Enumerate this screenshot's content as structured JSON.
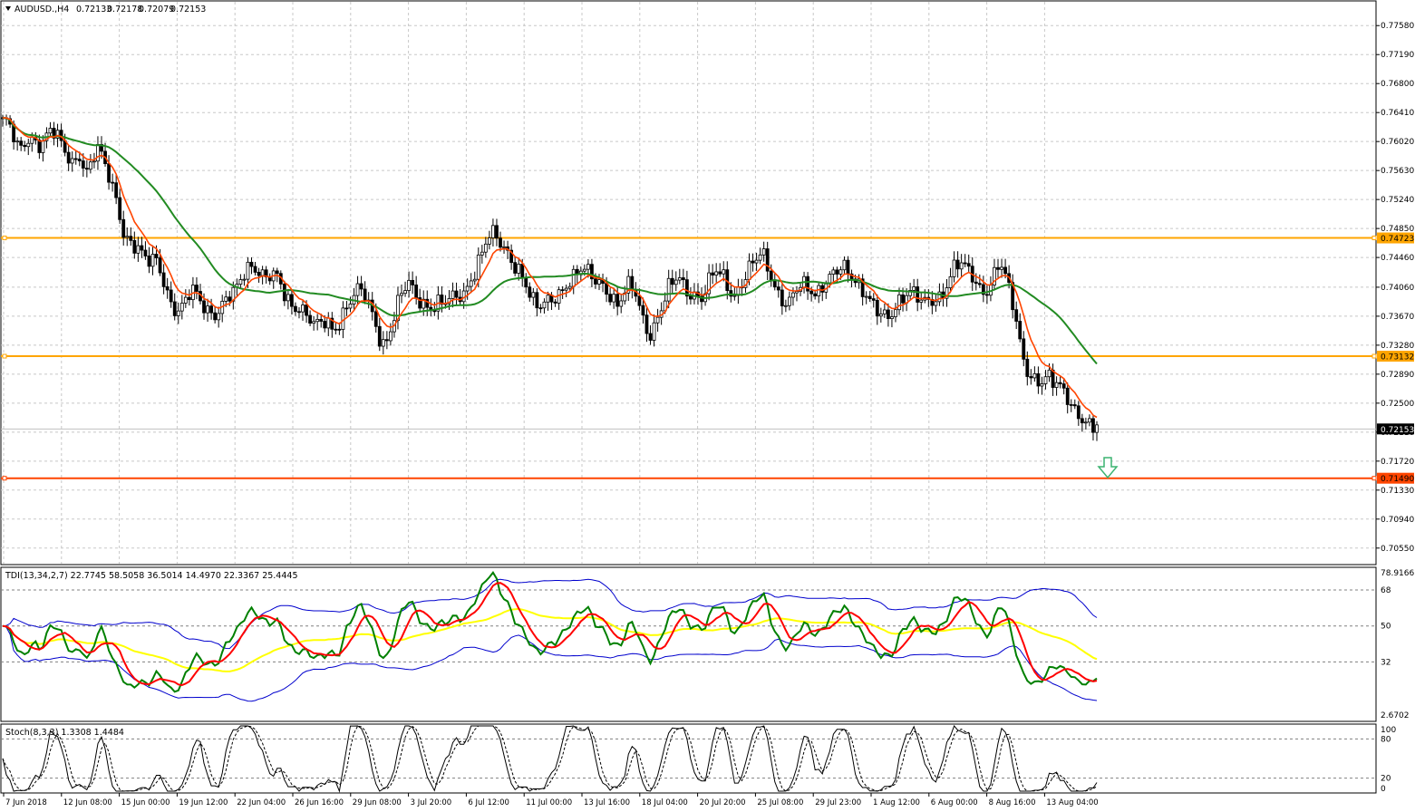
{
  "main": {
    "header": {
      "symbol": "AUDUSD.,H4",
      "open": "0.72133",
      "high": "0.72178",
      "low": "0.72079",
      "close": "0.72153"
    },
    "price_scale": [
      "0.77580",
      "0.77190",
      "0.76800",
      "0.76410",
      "0.76020",
      "0.75630",
      "0.75240",
      "0.74850",
      "0.74460",
      "0.74060",
      "0.73670",
      "0.73280",
      "0.72890",
      "0.72500",
      "0.72110",
      "0.71720",
      "0.71330",
      "0.70940",
      "0.70550"
    ],
    "price_scale_values": [
      0.7758,
      0.7719,
      0.768,
      0.7641,
      0.7602,
      0.7563,
      0.7524,
      0.7485,
      0.7446,
      0.7406,
      0.7367,
      0.7328,
      0.7289,
      0.725,
      0.7211,
      0.7172,
      0.7133,
      0.7094,
      0.7055
    ],
    "levels": [
      {
        "label": "0.74723",
        "value": 0.74723,
        "color": "#ffa500"
      },
      {
        "label": "0.73132",
        "value": 0.73132,
        "color": "#ffa500"
      },
      {
        "label": "0.71490",
        "value": 0.7149,
        "color": "#ff4500"
      }
    ],
    "current_price": {
      "label": "0.72153",
      "value": 0.72153
    },
    "arrow": {
      "direction": "down",
      "color": "#3cb371"
    },
    "ma_fast_color": "#ff4500",
    "ma_slow_color": "#228b22"
  },
  "tdi": {
    "header": "TDI(13,34,2,7) 22.7745 58.5058 36.5014 14.4970 22.3367 25.4445",
    "scale": [
      "78.9166",
      "68",
      "50",
      "32",
      "2.6702"
    ],
    "levels": [
      68,
      50,
      32
    ],
    "colors": {
      "band": "#0000cd",
      "signal": "#ff0000",
      "rsi": "#008000",
      "base": "#ffff00"
    }
  },
  "stoch": {
    "header": "Stoch(8,3,3) 1.3308 1.4484",
    "scale": [
      "100",
      "80",
      "20",
      "0"
    ],
    "levels": [
      80,
      20
    ]
  },
  "time_axis": [
    "7 Jun 2018",
    "12 Jun 08:00",
    "15 Jun 00:00",
    "19 Jun 12:00",
    "22 Jun 04:00",
    "26 Jun 16:00",
    "29 Jun 08:00",
    "3 Jul 20:00",
    "6 Jul 12:00",
    "11 Jul 00:00",
    "13 Jul 16:00",
    "18 Jul 04:00",
    "20 Jul 20:00",
    "25 Jul 08:00",
    "29 Jul 23:00",
    "1 Aug 12:00",
    "6 Aug 00:00",
    "8 Aug 16:00",
    "13 Aug 04:00"
  ],
  "chart_data": {
    "type": "candlestick",
    "symbol": "AUDUSD.,H4",
    "ylim": [
      0.7055,
      0.7758
    ],
    "price_path": [
      [
        0.763,
        0.7625,
        0.7605,
        0.7585,
        0.76,
        0.761,
        0.7605,
        0.76,
        0.761,
        0.7615,
        0.7605,
        0.759,
        0.758,
        0.7575,
        0.759,
        0.756,
        0.757,
        0.759,
        0.758,
        0.756
      ],
      [
        0.754,
        0.752,
        0.748,
        0.747,
        0.746,
        0.745,
        0.744,
        0.744,
        0.7445,
        0.7425,
        0.74,
        0.738,
        0.737,
        0.738,
        0.7395,
        0.74,
        0.739,
        0.738,
        0.7375,
        0.737
      ],
      [
        0.738,
        0.739,
        0.7395,
        0.741,
        0.743,
        0.744,
        0.7435,
        0.7425,
        0.7415,
        0.742,
        0.7415,
        0.74,
        0.739,
        0.738,
        0.7385,
        0.737,
        0.736,
        0.735,
        0.7355,
        0.736
      ],
      [
        0.735,
        0.736,
        0.7375,
        0.7385,
        0.7395,
        0.74,
        0.739,
        0.7375,
        0.7355,
        0.733,
        0.734,
        0.736,
        0.7385,
        0.74,
        0.741,
        0.7395,
        0.739,
        0.7385,
        0.738,
        0.7385
      ],
      [
        0.738,
        0.7385,
        0.739,
        0.7395,
        0.74,
        0.742,
        0.743,
        0.745,
        0.7465,
        0.7475,
        0.747,
        0.746,
        0.7455,
        0.744,
        0.743,
        0.741,
        0.739,
        0.7375,
        0.738,
        0.739
      ],
      [
        0.7395,
        0.74,
        0.7405,
        0.741,
        0.7415,
        0.7425,
        0.743,
        0.7425,
        0.742,
        0.7415,
        0.74,
        0.7385,
        0.7375,
        0.7395,
        0.741,
        0.7405,
        0.738,
        0.7355,
        0.734,
        0.736
      ],
      [
        0.7375,
        0.74,
        0.7415,
        0.7425,
        0.741,
        0.74,
        0.7395,
        0.7385,
        0.74,
        0.742,
        0.743,
        0.7425,
        0.741,
        0.7395,
        0.7405,
        0.7415,
        0.743,
        0.744,
        0.7455,
        0.744
      ],
      [
        0.742,
        0.74,
        0.7385,
        0.738,
        0.7395,
        0.7405,
        0.741,
        0.7405,
        0.74,
        0.741,
        0.7415,
        0.742,
        0.7425,
        0.743,
        0.7425,
        0.742,
        0.741,
        0.74,
        0.7385,
        0.737
      ],
      [
        0.7365,
        0.736,
        0.7375,
        0.739,
        0.74,
        0.7405,
        0.7395,
        0.7385,
        0.738,
        0.7385,
        0.739,
        0.74,
        0.742,
        0.7435,
        0.744,
        0.743,
        0.742,
        0.741,
        0.74,
        0.7405
      ],
      [
        0.742,
        0.744,
        0.743,
        0.74,
        0.737,
        0.733,
        0.73,
        0.729,
        0.7285,
        0.728,
        0.7285,
        0.7275,
        0.727,
        0.7265,
        0.7255,
        0.7245,
        0.7235,
        0.7225,
        0.7215,
        0.7215
      ]
    ]
  }
}
